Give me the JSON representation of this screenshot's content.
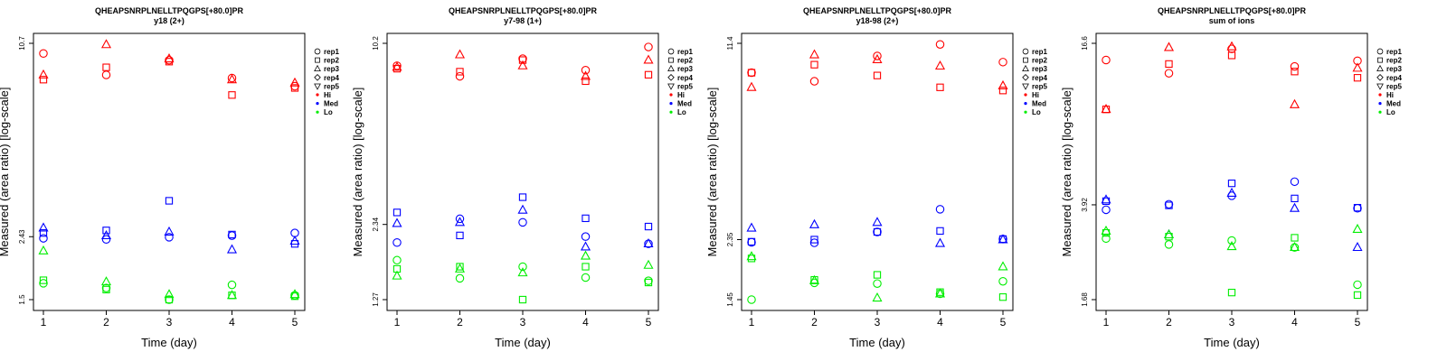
{
  "colors": {
    "Hi": "#ff0000",
    "Med": "#0000ff",
    "Lo": "#00ee00"
  },
  "legend": {
    "reps": [
      {
        "label": "rep1",
        "shape": "circle"
      },
      {
        "label": "rep2",
        "shape": "square"
      },
      {
        "label": "rep3",
        "shape": "triangle-up"
      },
      {
        "label": "rep4",
        "shape": "diamond"
      },
      {
        "label": "rep5",
        "shape": "triangle-down"
      }
    ],
    "groups": [
      {
        "label": "Hi",
        "color": "#ff0000"
      },
      {
        "label": "Med",
        "color": "#0000ff"
      },
      {
        "label": "Lo",
        "color": "#00ee00"
      }
    ]
  },
  "chart_data": [
    {
      "type": "scatter",
      "title": "QHEAPSNRPLNELLTPQGPS[+80.0]PR",
      "subtitle": "y18 (2+)",
      "xlabel": "Time (day)",
      "ylabel": "Measured (area ratio) [log-scale]",
      "y_scale": "log",
      "ylim": [
        1.5,
        10.7
      ],
      "yticks": [
        "1.5",
        "2.43",
        "10.7"
      ],
      "x": [
        1,
        2,
        3,
        4,
        5
      ],
      "series": [
        {
          "name": "Hi",
          "group": "Hi",
          "rep": "rep1",
          "values": [
            9.9,
            8.4,
            9.4,
            8.2,
            7.7
          ]
        },
        {
          "name": "Hi",
          "group": "Hi",
          "rep": "rep2",
          "values": [
            8.1,
            8.9,
            9.3,
            7.2,
            7.6
          ]
        },
        {
          "name": "Hi",
          "group": "Hi",
          "rep": "rep3",
          "values": [
            8.4,
            10.6,
            9.5,
            8.1,
            7.9
          ]
        },
        {
          "name": "Med",
          "group": "Med",
          "rep": "rep1",
          "values": [
            2.4,
            2.38,
            2.42,
            2.45,
            2.5
          ]
        },
        {
          "name": "Med",
          "group": "Med",
          "rep": "rep2",
          "values": [
            2.5,
            2.55,
            3.2,
            2.47,
            2.3
          ]
        },
        {
          "name": "Med",
          "group": "Med",
          "rep": "rep3",
          "values": [
            2.6,
            2.45,
            2.52,
            2.2,
            2.35
          ]
        },
        {
          "name": "Lo",
          "group": "Lo",
          "rep": "rep1",
          "values": [
            1.7,
            1.64,
            1.5,
            1.68,
            1.55
          ]
        },
        {
          "name": "Lo",
          "group": "Lo",
          "rep": "rep2",
          "values": [
            1.74,
            1.62,
            1.5,
            1.55,
            1.54
          ]
        },
        {
          "name": "Lo",
          "group": "Lo",
          "rep": "rep3",
          "values": [
            2.18,
            1.72,
            1.56,
            1.55,
            1.56
          ]
        }
      ]
    },
    {
      "type": "scatter",
      "title": "QHEAPSNRPLNELLTPQGPS[+80.0]PR",
      "subtitle": "y7-98 (1+)",
      "xlabel": "Time (day)",
      "ylabel": "Measured (area ratio) [log-scale]",
      "y_scale": "log",
      "ylim": [
        1.27,
        10.2
      ],
      "yticks": [
        "1.27",
        "2.34",
        "10.2"
      ],
      "x": [
        1,
        2,
        3,
        4,
        5
      ],
      "series": [
        {
          "name": "Hi",
          "group": "Hi",
          "rep": "rep1",
          "values": [
            8.5,
            7.8,
            9.0,
            8.2,
            9.9
          ]
        },
        {
          "name": "Hi",
          "group": "Hi",
          "rep": "rep2",
          "values": [
            8.3,
            8.1,
            8.9,
            7.5,
            7.9
          ]
        },
        {
          "name": "Hi",
          "group": "Hi",
          "rep": "rep3",
          "values": [
            8.4,
            9.3,
            8.5,
            7.8,
            8.9
          ]
        },
        {
          "name": "Med",
          "group": "Med",
          "rep": "rep1",
          "values": [
            2.02,
            2.45,
            2.38,
            2.12,
            2.0
          ]
        },
        {
          "name": "Med",
          "group": "Med",
          "rep": "rep2",
          "values": [
            2.58,
            2.14,
            2.92,
            2.46,
            2.3
          ]
        },
        {
          "name": "Med",
          "group": "Med",
          "rep": "rep3",
          "values": [
            2.36,
            2.38,
            2.63,
            1.95,
            2.0
          ]
        },
        {
          "name": "Lo",
          "group": "Lo",
          "rep": "rep1",
          "values": [
            1.75,
            1.51,
            1.66,
            1.52,
            1.48
          ]
        },
        {
          "name": "Lo",
          "group": "Lo",
          "rep": "rep2",
          "values": [
            1.63,
            1.66,
            1.27,
            1.66,
            1.46
          ]
        },
        {
          "name": "Lo",
          "group": "Lo",
          "rep": "rep3",
          "values": [
            1.54,
            1.63,
            1.58,
            1.81,
            1.68
          ]
        }
      ]
    },
    {
      "type": "scatter",
      "title": "QHEAPSNRPLNELLTPQGPS[+80.0]PR",
      "subtitle": "y18-98 (2+)",
      "xlabel": "Time (day)",
      "ylabel": "Measured (area ratio) [log-scale]",
      "y_scale": "log",
      "ylim": [
        1.45,
        11.4
      ],
      "yticks": [
        "1.45",
        "2.35",
        "11.4"
      ],
      "x": [
        1,
        2,
        3,
        4,
        5
      ],
      "series": [
        {
          "name": "Hi",
          "group": "Hi",
          "rep": "rep1",
          "values": [
            9.0,
            8.4,
            10.3,
            11.3,
            9.8
          ]
        },
        {
          "name": "Hi",
          "group": "Hi",
          "rep": "rep2",
          "values": [
            9.0,
            9.6,
            8.8,
            8.0,
            7.8
          ]
        },
        {
          "name": "Hi",
          "group": "Hi",
          "rep": "rep3",
          "values": [
            8.0,
            10.4,
            10.0,
            9.5,
            8.1
          ]
        },
        {
          "name": "Med",
          "group": "Med",
          "rep": "rep1",
          "values": [
            2.3,
            2.29,
            2.5,
            3.0,
            2.36
          ]
        },
        {
          "name": "Med",
          "group": "Med",
          "rep": "rep2",
          "values": [
            2.31,
            2.35,
            2.5,
            2.52,
            2.36
          ]
        },
        {
          "name": "Med",
          "group": "Med",
          "rep": "rep3",
          "values": [
            2.58,
            2.65,
            2.7,
            2.28,
            2.35
          ]
        },
        {
          "name": "Lo",
          "group": "Lo",
          "rep": "rep1",
          "values": [
            1.45,
            1.66,
            1.65,
            1.52,
            1.68
          ]
        },
        {
          "name": "Lo",
          "group": "Lo",
          "rep": "rep2",
          "values": [
            2.02,
            1.7,
            1.77,
            1.54,
            1.48
          ]
        },
        {
          "name": "Lo",
          "group": "Lo",
          "rep": "rep3",
          "values": [
            2.05,
            1.69,
            1.47,
            1.52,
            1.89
          ]
        }
      ]
    },
    {
      "type": "scatter",
      "title": "QHEAPSNRPLNELLTPQGPS[+80.0]PR",
      "subtitle": "sum of ions",
      "xlabel": "Time (day)",
      "ylabel": "Measured (area ratio) [log-scale]",
      "y_scale": "log",
      "ylim": [
        1.68,
        16.6
      ],
      "yticks": [
        "1.68",
        "3.92",
        "16.6"
      ],
      "x": [
        1,
        2,
        3,
        4,
        5
      ],
      "series": [
        {
          "name": "Hi",
          "group": "Hi",
          "rep": "rep1",
          "values": [
            14.3,
            12.7,
            15.8,
            13.5,
            14.2
          ]
        },
        {
          "name": "Hi",
          "group": "Hi",
          "rep": "rep2",
          "values": [
            9.2,
            13.8,
            14.9,
            12.9,
            12.2
          ]
        },
        {
          "name": "Hi",
          "group": "Hi",
          "rep": "rep3",
          "values": [
            9.2,
            16.0,
            16.1,
            9.6,
            13.3
          ]
        },
        {
          "name": "Med",
          "group": "Med",
          "rep": "rep1",
          "values": [
            3.75,
            3.94,
            4.25,
            4.82,
            3.8
          ]
        },
        {
          "name": "Med",
          "group": "Med",
          "rep": "rep2",
          "values": [
            4.05,
            3.9,
            4.75,
            4.15,
            3.82
          ]
        },
        {
          "name": "Med",
          "group": "Med",
          "rep": "rep3",
          "values": [
            4.1,
            3.0,
            4.35,
            3.8,
            2.68
          ]
        },
        {
          "name": "Lo",
          "group": "Lo",
          "rep": "rep1",
          "values": [
            2.9,
            2.75,
            2.85,
            2.68,
            1.92
          ]
        },
        {
          "name": "Lo",
          "group": "Lo",
          "rep": "rep2",
          "values": [
            3.05,
            2.95,
            1.79,
            2.92,
            1.75
          ]
        },
        {
          "name": "Lo",
          "group": "Lo",
          "rep": "rep3",
          "values": [
            3.1,
            3.0,
            2.7,
            2.68,
            3.15
          ]
        }
      ]
    }
  ]
}
